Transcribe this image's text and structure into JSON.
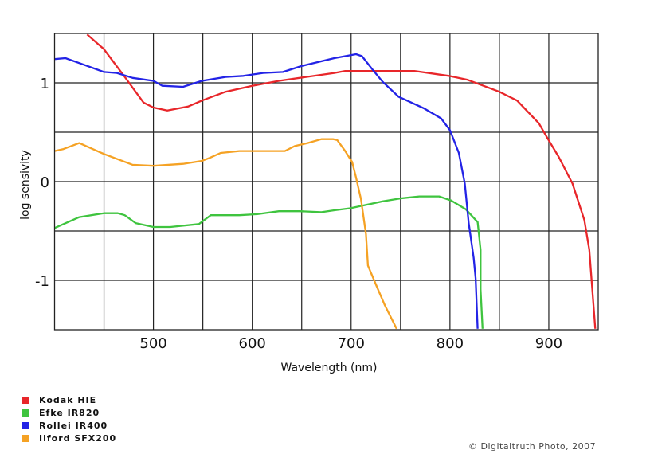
{
  "chart_data": {
    "type": "line",
    "title": "",
    "xlabel": "Wavelength (nm)",
    "ylabel": "log sensivity",
    "xlim": [
      400,
      950
    ],
    "ylim": [
      -1.5,
      1.5
    ],
    "x_ticks": [
      500,
      600,
      700,
      800,
      900
    ],
    "x_tick_labels": [
      "500",
      "600",
      "700",
      "800",
      "900"
    ],
    "y_ticks": [
      1,
      0,
      -1
    ],
    "y_tick_labels": [
      "1",
      "0",
      "-1"
    ],
    "x_grid_step": 50,
    "y_grid_step": 0.5,
    "grid": true,
    "legend_placement": "bottom-left",
    "series": [
      {
        "name": "Kodak HIE",
        "color": "#e8262a",
        "x": [
          433,
          450,
          456,
          471,
          490,
          500,
          514,
          535,
          549,
          573,
          600,
          627,
          683,
          694,
          764,
          799,
          818,
          850,
          868,
          890,
          898,
          910,
          924,
          936,
          941,
          947
        ],
        "y": [
          1.49,
          1.34,
          1.26,
          1.06,
          0.8,
          0.75,
          0.72,
          0.76,
          0.82,
          0.91,
          0.97,
          1.02,
          1.1,
          1.12,
          1.12,
          1.07,
          1.03,
          0.91,
          0.82,
          0.59,
          0.45,
          0.25,
          -0.02,
          -0.39,
          -0.69,
          -1.49
        ]
      },
      {
        "name": "Efke IR820",
        "color": "#3fc43f",
        "x": [
          400,
          425,
          450,
          464,
          471,
          482,
          500,
          517,
          546,
          558,
          587,
          605,
          627,
          648,
          670,
          683,
          699,
          732,
          750,
          769,
          789,
          801,
          816,
          828,
          831,
          831,
          833
        ],
        "y": [
          -0.47,
          -0.36,
          -0.32,
          -0.32,
          -0.34,
          -0.42,
          -0.46,
          -0.46,
          -0.43,
          -0.34,
          -0.34,
          -0.33,
          -0.3,
          -0.3,
          -0.31,
          -0.29,
          -0.27,
          -0.2,
          -0.17,
          -0.15,
          -0.15,
          -0.19,
          -0.28,
          -0.41,
          -0.69,
          -1.09,
          -1.49
        ]
      },
      {
        "name": "Rollei IR400",
        "color": "#2323e6",
        "x": [
          400,
          411,
          425,
          450,
          463,
          479,
          500,
          509,
          530,
          549,
          573,
          591,
          611,
          631,
          650,
          683,
          705,
          711,
          722,
          732,
          748,
          774,
          791,
          800,
          809,
          815,
          819,
          824,
          826,
          828
        ],
        "y": [
          1.24,
          1.25,
          1.2,
          1.11,
          1.1,
          1.05,
          1.02,
          0.97,
          0.96,
          1.02,
          1.06,
          1.07,
          1.1,
          1.11,
          1.17,
          1.25,
          1.29,
          1.27,
          1.13,
          1.01,
          0.86,
          0.74,
          0.64,
          0.52,
          0.29,
          -0.02,
          -0.42,
          -0.77,
          -0.98,
          -1.49
        ]
      },
      {
        "name": "Ilford SFX200",
        "color": "#f5a224",
        "x": [
          400,
          409,
          425,
          450,
          479,
          500,
          530,
          549,
          557,
          568,
          587,
          633,
          643,
          656,
          670,
          682,
          686,
          694,
          701,
          705,
          710,
          715,
          717,
          725,
          734,
          746
        ],
        "y": [
          0.31,
          0.33,
          0.39,
          0.28,
          0.17,
          0.16,
          0.18,
          0.21,
          0.24,
          0.29,
          0.31,
          0.31,
          0.36,
          0.39,
          0.43,
          0.43,
          0.42,
          0.31,
          0.2,
          0.04,
          -0.18,
          -0.53,
          -0.85,
          -1.04,
          -1.25,
          -1.49
        ]
      }
    ]
  },
  "copyright": "© Digitaltruth Photo, 2007"
}
